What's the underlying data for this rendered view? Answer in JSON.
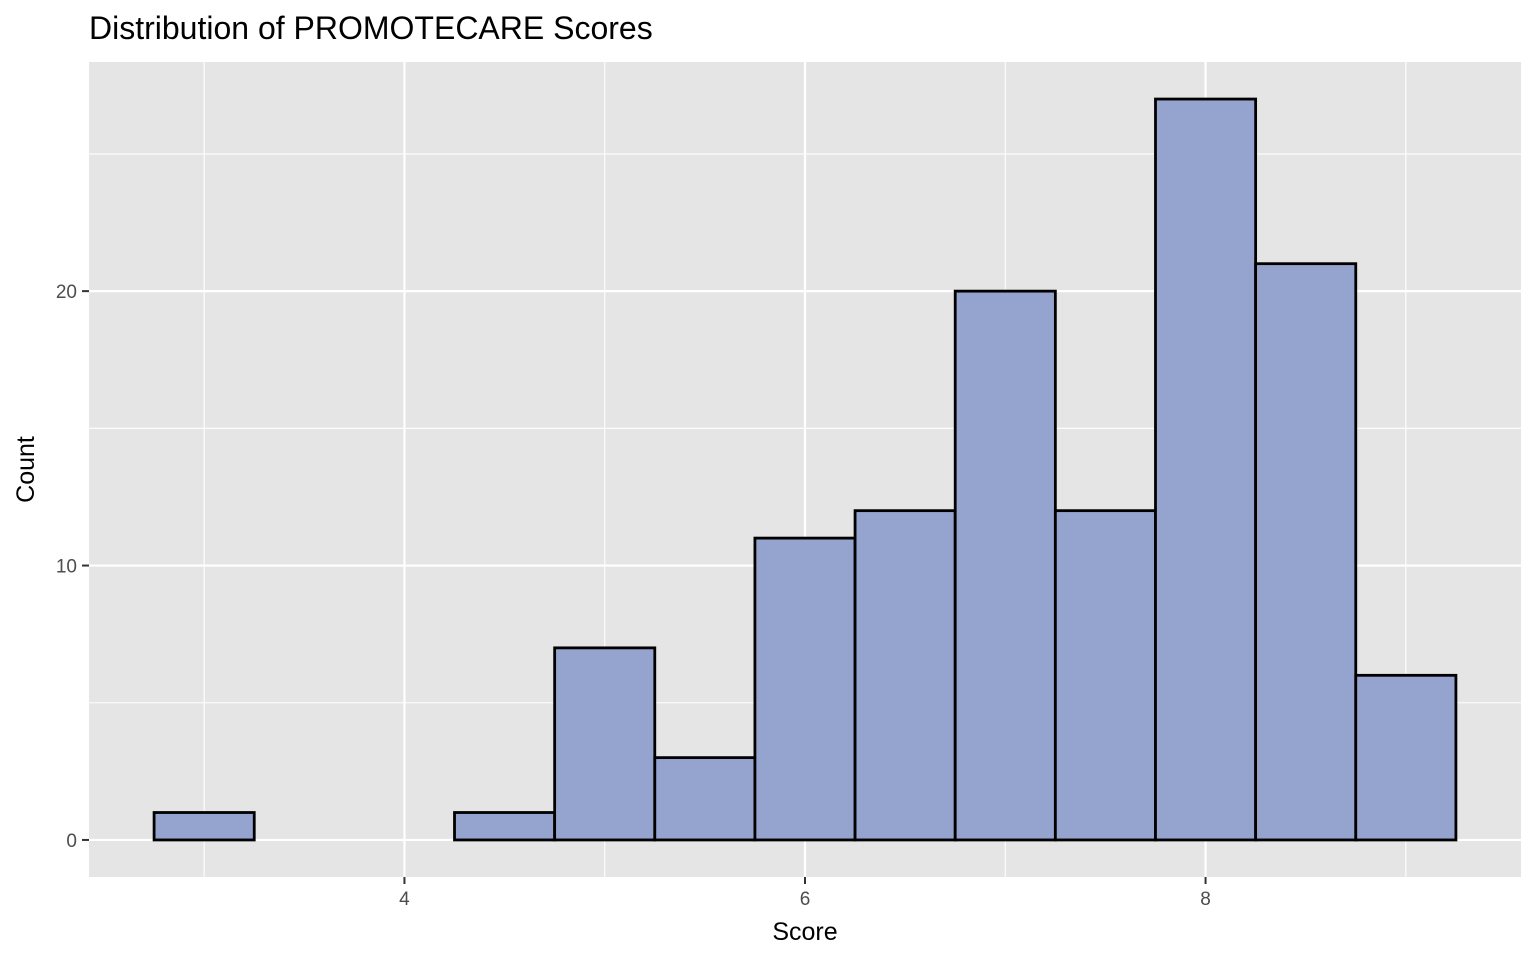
{
  "chart_data": {
    "type": "bar",
    "title": "Distribution of PROMOTECARE Scores",
    "xlabel": "Score",
    "ylabel": "Count",
    "bin_width": 0.5,
    "bins": [
      {
        "x0": 2.75,
        "x1": 3.25,
        "count": 1
      },
      {
        "x0": 3.25,
        "x1": 3.75,
        "count": 0
      },
      {
        "x0": 3.75,
        "x1": 4.25,
        "count": 0
      },
      {
        "x0": 4.25,
        "x1": 4.75,
        "count": 1
      },
      {
        "x0": 4.75,
        "x1": 5.25,
        "count": 7
      },
      {
        "x0": 5.25,
        "x1": 5.75,
        "count": 3
      },
      {
        "x0": 5.75,
        "x1": 6.25,
        "count": 11
      },
      {
        "x0": 6.25,
        "x1": 6.75,
        "count": 12
      },
      {
        "x0": 6.75,
        "x1": 7.25,
        "count": 20
      },
      {
        "x0": 7.25,
        "x1": 7.75,
        "count": 12
      },
      {
        "x0": 7.75,
        "x1": 8.25,
        "count": 27
      },
      {
        "x0": 8.25,
        "x1": 8.75,
        "count": 21
      },
      {
        "x0": 8.75,
        "x1": 9.25,
        "count": 6
      }
    ],
    "xlim": [
      2.425,
      9.575
    ],
    "ylim": [
      -1.35,
      28.35
    ],
    "x_ticks": [
      4,
      6,
      8
    ],
    "x_tick_labels": [
      "4",
      "6",
      "8"
    ],
    "x_minor_ticks": [
      3,
      5,
      7,
      9
    ],
    "y_ticks": [
      0,
      10,
      20
    ],
    "y_tick_labels": [
      "0",
      "10",
      "20"
    ],
    "y_minor_ticks": [
      5,
      15,
      25
    ],
    "grid": true,
    "colors": {
      "panel_background": "#e5e5e5",
      "grid": "#ffffff",
      "bar_fill": "#95a3cf",
      "bar_stroke": "#000000"
    }
  }
}
